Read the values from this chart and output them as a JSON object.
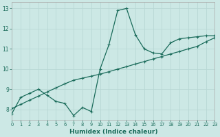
{
  "xlabel": "Humidex (Indice chaleur)",
  "bg_color": "#cce8e5",
  "line_color": "#1a6b5a",
  "grid_color": "#b8d8d5",
  "x_data": [
    0,
    1,
    2,
    3,
    4,
    5,
    6,
    7,
    8,
    9,
    10,
    11,
    12,
    13,
    14,
    15,
    16,
    17,
    18,
    19,
    20,
    21,
    22,
    23
  ],
  "y_curve": [
    7.8,
    8.6,
    8.8,
    9.0,
    8.7,
    8.4,
    8.3,
    7.7,
    8.1,
    7.9,
    10.0,
    11.2,
    12.9,
    13.0,
    11.7,
    11.0,
    10.8,
    10.75,
    11.3,
    11.5,
    11.55,
    11.6,
    11.65,
    11.65
  ],
  "y_trend": [
    8.05,
    8.25,
    8.46,
    8.66,
    8.87,
    9.07,
    9.27,
    9.45,
    9.55,
    9.65,
    9.75,
    9.87,
    10.0,
    10.12,
    10.25,
    10.37,
    10.5,
    10.62,
    10.75,
    10.87,
    11.0,
    11.12,
    11.35,
    11.55
  ],
  "ylim": [
    7.5,
    13.3
  ],
  "xlim": [
    0,
    23
  ],
  "yticks": [
    8,
    9,
    10,
    11,
    12,
    13
  ],
  "xticks": [
    0,
    1,
    2,
    3,
    4,
    5,
    6,
    7,
    8,
    9,
    10,
    11,
    12,
    13,
    14,
    15,
    16,
    17,
    18,
    19,
    20,
    21,
    22,
    23
  ],
  "tick_fontsize": 5.5,
  "xlabel_fontsize": 6.5
}
